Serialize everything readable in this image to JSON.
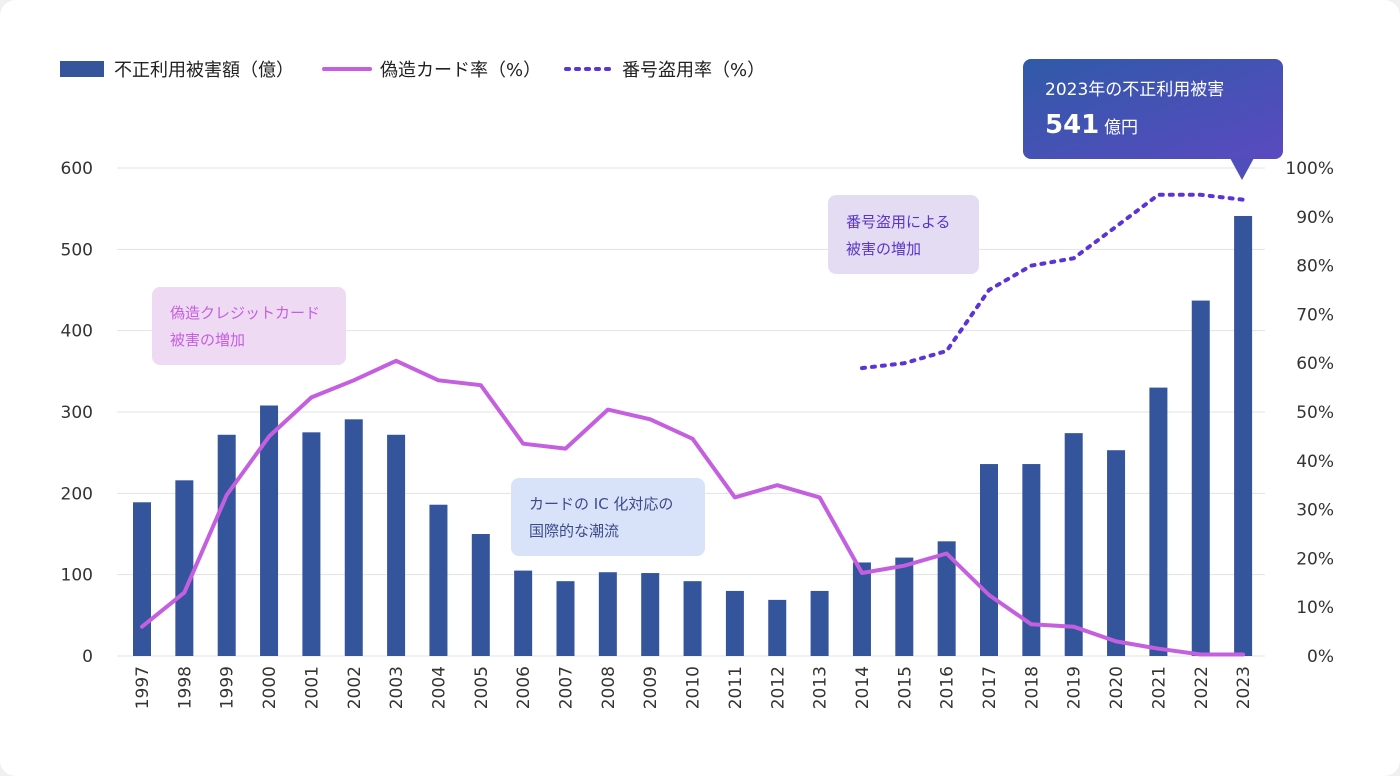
{
  "chart_data": {
    "type": "bar",
    "categories": [
      "1997",
      "1998",
      "1999",
      "2000",
      "2001",
      "2002",
      "2003",
      "2004",
      "2005",
      "2006",
      "2007",
      "2008",
      "2009",
      "2010",
      "2011",
      "2012",
      "2013",
      "2014",
      "2015",
      "2016",
      "2017",
      "2018",
      "2019",
      "2020",
      "2021",
      "2022",
      "2023"
    ],
    "series": [
      {
        "name": "不正利用被害額（億）",
        "type": "bar",
        "axis": "left",
        "color": "#34549b",
        "values": [
          189,
          216,
          272,
          308,
          275,
          291,
          272,
          186,
          150,
          105,
          92,
          103,
          102,
          92,
          80,
          69,
          80,
          115,
          121,
          141,
          236,
          236,
          274,
          253,
          330,
          437,
          541
        ]
      },
      {
        "name": "偽造カード率（%）",
        "type": "line",
        "axis": "right",
        "color": "#c45fe0",
        "values": [
          6,
          13,
          33,
          45,
          53,
          56.5,
          60.5,
          56.5,
          55.5,
          43.5,
          42.5,
          50.5,
          48.5,
          44.5,
          32.5,
          35,
          32.5,
          17,
          18.5,
          21,
          12.5,
          6.5,
          6,
          3,
          1.5,
          0.3,
          0.3
        ]
      },
      {
        "name": "番号盗用率（%）",
        "type": "line-dotted",
        "axis": "right",
        "color": "#5a34d6",
        "values": [
          null,
          null,
          null,
          null,
          null,
          null,
          null,
          null,
          null,
          null,
          null,
          null,
          null,
          null,
          null,
          null,
          null,
          59,
          60,
          62.5,
          75,
          80,
          81.5,
          88,
          94.5,
          94.5,
          93.5
        ]
      }
    ],
    "left_axis": {
      "min": 0,
      "max": 600,
      "ticks": [
        "0",
        "100",
        "200",
        "300",
        "400",
        "500",
        "600"
      ]
    },
    "right_axis": {
      "min": 0,
      "max": 100,
      "ticks": [
        "0%",
        "10%",
        "20%",
        "30%",
        "40%",
        "50%",
        "60%",
        "70%",
        "80%",
        "90%",
        "100%"
      ]
    },
    "legend": [
      "不正利用被害額（億）",
      "偽造カード率（%）",
      "番号盗用率（%）"
    ],
    "legend_position": "top-left",
    "grid": true
  },
  "annotations": {
    "counterfeit": {
      "lines": [
        "偽造クレジットカード",
        "被害の増加"
      ],
      "color": "#c45fe0",
      "bg": "#efdaf3"
    },
    "ic": {
      "lines": [
        "カードの IC 化対応の",
        "国際的な潮流"
      ],
      "color": "#3c4a8c",
      "bg": "#d8e2f8"
    },
    "theft": {
      "lines": [
        "番号盗用による",
        "被害の増加"
      ],
      "color": "#5a34c8",
      "bg": "#e4dcf3"
    }
  },
  "callout": {
    "title": "2023年の不正利用被害",
    "value": "541",
    "unit": "億円",
    "bg": "#3b57b0"
  }
}
